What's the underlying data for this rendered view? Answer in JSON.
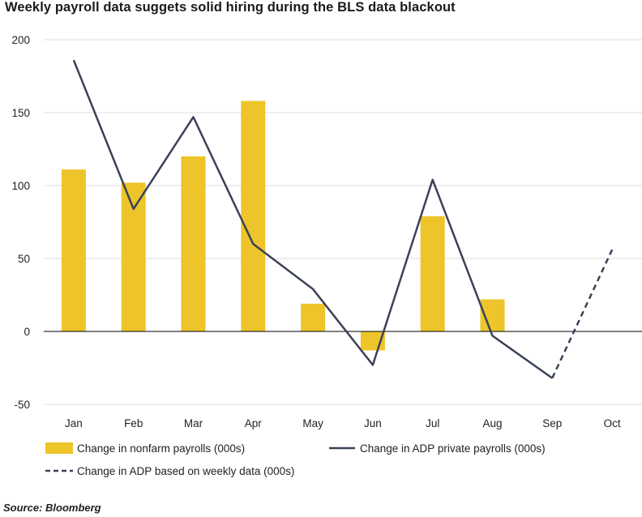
{
  "title": "Weekly payroll data suggets solid hiring during the BLS data blackout",
  "source": "Source: Bloomberg",
  "colors": {
    "bar": "#EEC42B",
    "line": "#3A4257",
    "grid": "#dddddd",
    "zero": "#000000"
  },
  "chart_data": {
    "type": "bar",
    "title": "Weekly payroll data suggets solid hiring during the BLS data blackout",
    "xlabel": "",
    "ylabel": "",
    "ylim": [
      -50,
      200
    ],
    "yticks": [
      200,
      150,
      100,
      50,
      0,
      -50
    ],
    "categories": [
      "Jan",
      "Feb",
      "Mar",
      "Apr",
      "May",
      "Jun",
      "Jul",
      "Aug",
      "Sep",
      "Oct"
    ],
    "series": [
      {
        "name": "Change in nonfarm payrolls (000s)",
        "kind": "bar",
        "values": [
          111,
          102,
          120,
          158,
          19,
          -13,
          79,
          22,
          null,
          null
        ]
      },
      {
        "name": "Change in ADP private payrolls (000s)",
        "kind": "line",
        "values": [
          186,
          84,
          147,
          60,
          29,
          -23,
          104,
          -3,
          -32,
          null
        ]
      },
      {
        "name": "Change in ADP based on weekly data (000s)",
        "kind": "dashed-line",
        "values": [
          null,
          null,
          null,
          null,
          null,
          null,
          null,
          null,
          -32,
          56
        ]
      }
    ],
    "legend": "bottom"
  }
}
